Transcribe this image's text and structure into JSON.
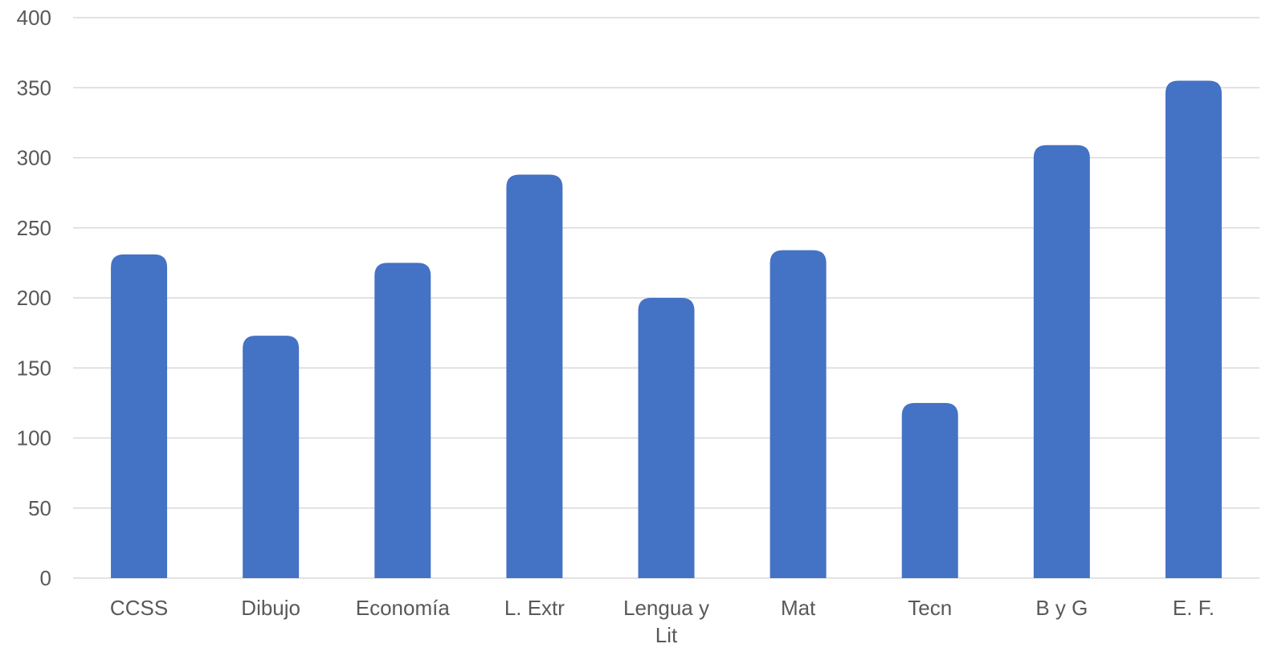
{
  "chart_data": {
    "type": "bar",
    "title": "",
    "xlabel": "",
    "ylabel": "",
    "categories": [
      "CCSS",
      "Dibujo",
      "Economía",
      "L. Extr",
      "Lengua y Lit",
      "Mat",
      "Tecn",
      "B y G",
      "E. F."
    ],
    "category_lines": [
      [
        "CCSS"
      ],
      [
        "Dibujo"
      ],
      [
        "Economía"
      ],
      [
        "L. Extr"
      ],
      [
        "Lengua y",
        "Lit"
      ],
      [
        "Mat"
      ],
      [
        "Tecn"
      ],
      [
        "B y G"
      ],
      [
        "E. F."
      ]
    ],
    "values": [
      231,
      173,
      225,
      288,
      200,
      234,
      125,
      309,
      355
    ],
    "ylim": [
      0,
      400
    ],
    "yticks": [
      0,
      50,
      100,
      150,
      200,
      250,
      300,
      350,
      400
    ],
    "grid": true,
    "legend": "none",
    "colors": {
      "bar": "#4472C4",
      "grid": "#D9D9D9",
      "text": "#595959"
    }
  }
}
